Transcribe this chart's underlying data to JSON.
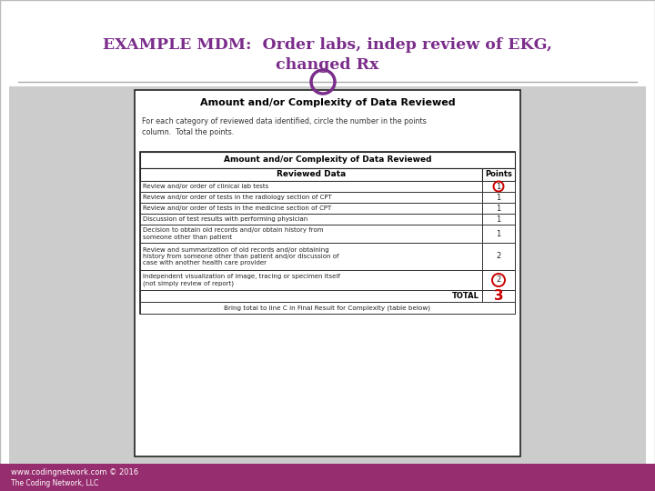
{
  "title_line1": "EXAMPLE MDM:  Order labs, indep review of EKG,",
  "title_line2": "changed Rx",
  "title_color": "#7B2D8B",
  "bg_color": "#FFFFFF",
  "slide_bg": "#C8C8C8",
  "footer_bg": "#962D6E",
  "footer_text": "www.codingnetwork.com © 2016",
  "footer_text2": "The Coding Network, LLC",
  "footer_color": "#FFFFFF",
  "table_outer_title": "Amount and/or Complexity of Data Reviewed",
  "table_subtitle": "For each category of reviewed data identified, circle the number in the points\ncolumn.  Total the points.",
  "inner_table_header": "Amount and/or Complexity of Data Reviewed",
  "col1_header": "Reviewed Data",
  "col2_header": "Points",
  "rows": [
    {
      "text": "Review and/or order of clinical lab tests",
      "points": "1",
      "circled": true,
      "nlines": 1
    },
    {
      "text": "Review and/or order of tests in the radiology section of CPT",
      "points": "1",
      "circled": false,
      "nlines": 1
    },
    {
      "text": "Review and/or order of tests in the medicine section of CPT",
      "points": "1",
      "circled": false,
      "nlines": 1
    },
    {
      "text": "Discussion of test results with performing physician",
      "points": "1",
      "circled": false,
      "nlines": 1
    },
    {
      "text": "Decision to obtain old records and/or obtain history from\nsomeone other than patient",
      "points": "1",
      "circled": false,
      "nlines": 2
    },
    {
      "text": "Review and summarization of old records and/or obtaining\nhistory from someone other than patient and/or discussion of\ncase with another health care provider",
      "points": "2",
      "circled": false,
      "nlines": 3
    },
    {
      "text": "Independent visualization of image, tracing or specimen itself\n(not simply review of report)",
      "points": "2",
      "circled": true,
      "nlines": 2
    }
  ],
  "total_label": "TOTAL",
  "total_value": "3",
  "footer_note_plain": "Bring total to ",
  "footer_note_bold": "line C",
  "footer_note_end": " in Final Result for Complexity (table below)",
  "circle_color": "#CC0000",
  "top_circle_color": "#7B2D8B",
  "border_color": "#222222"
}
